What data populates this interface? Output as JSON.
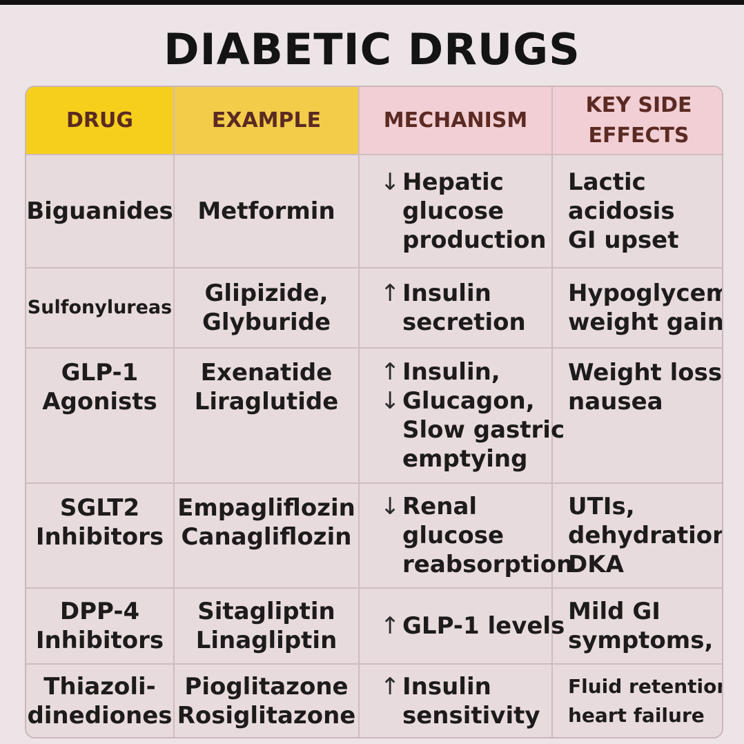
{
  "title": "DIABETIC DRUGS",
  "headers": {
    "drug": "DRUG",
    "example": "EXAMPLE",
    "mechanism": "MECHANISM",
    "side_effects_l1": "KEY SIDE",
    "side_effects_l2": "EFFECTS"
  },
  "colors": {
    "drug_header": "#f6cf1c",
    "example_header": "#f3cc4a",
    "mechanism_header": "#f1cfd4",
    "side_header": "#f1cfd4"
  },
  "rows": [
    {
      "drug": [
        "Biguanides"
      ],
      "example": [
        "Metformin"
      ],
      "mechanism": [
        {
          "arrow": "↓",
          "text": "Hepatic"
        },
        {
          "arrow": "",
          "text": "glucose"
        },
        {
          "arrow": "",
          "text": "production"
        }
      ],
      "side": [
        "Lactic",
        "acidosis",
        "GI upset"
      ]
    },
    {
      "drug": [
        "Sulfonylureas"
      ],
      "example": [
        "Glipizide,",
        "Glyburide"
      ],
      "mechanism": [
        {
          "arrow": "↑",
          "text": "Insulin"
        },
        {
          "arrow": "",
          "text": "secretion"
        }
      ],
      "side": [
        "Hypoglycemia,",
        "weight gain"
      ]
    },
    {
      "drug": [
        "GLP-1",
        "Agonists"
      ],
      "example": [
        "Exenatide",
        "Liraglutide"
      ],
      "mechanism": [
        {
          "arrow": "↑",
          "text": "Insulin,"
        },
        {
          "arrow": "↓",
          "text": "Glucagon,"
        },
        {
          "arrow": "",
          "text": "Slow gastric"
        },
        {
          "arrow": "",
          "text": "emptying"
        }
      ],
      "side": [
        "Weight loss",
        "nausea"
      ]
    },
    {
      "drug": [
        "SGLT2",
        "Inhibitors"
      ],
      "example": [
        "Empagliflozin",
        "Canagliflozin"
      ],
      "mechanism": [
        {
          "arrow": "↓",
          "text": "Renal"
        },
        {
          "arrow": "",
          "text": "glucose"
        },
        {
          "arrow": "",
          "text": "reabsorption"
        }
      ],
      "side": [
        "UTIs,",
        "dehydration,",
        "DKA"
      ]
    },
    {
      "drug": [
        "DPP-4",
        "Inhibitors"
      ],
      "example": [
        "Sitagliptin",
        "Linagliptin"
      ],
      "mechanism": [
        {
          "arrow": "↑",
          "text": "GLP-1 levels"
        }
      ],
      "side": [
        "Mild GI",
        "symptoms,"
      ]
    },
    {
      "drug": [
        "Thiazoli-",
        "dinediones"
      ],
      "example": [
        "Pioglitazone",
        "Rosiglitazone"
      ],
      "mechanism": [
        {
          "arrow": "↑",
          "text": "Insulin"
        },
        {
          "arrow": "",
          "text": "sensitivity"
        }
      ],
      "side": [
        "Fluid retention,",
        "heart failure"
      ]
    }
  ]
}
